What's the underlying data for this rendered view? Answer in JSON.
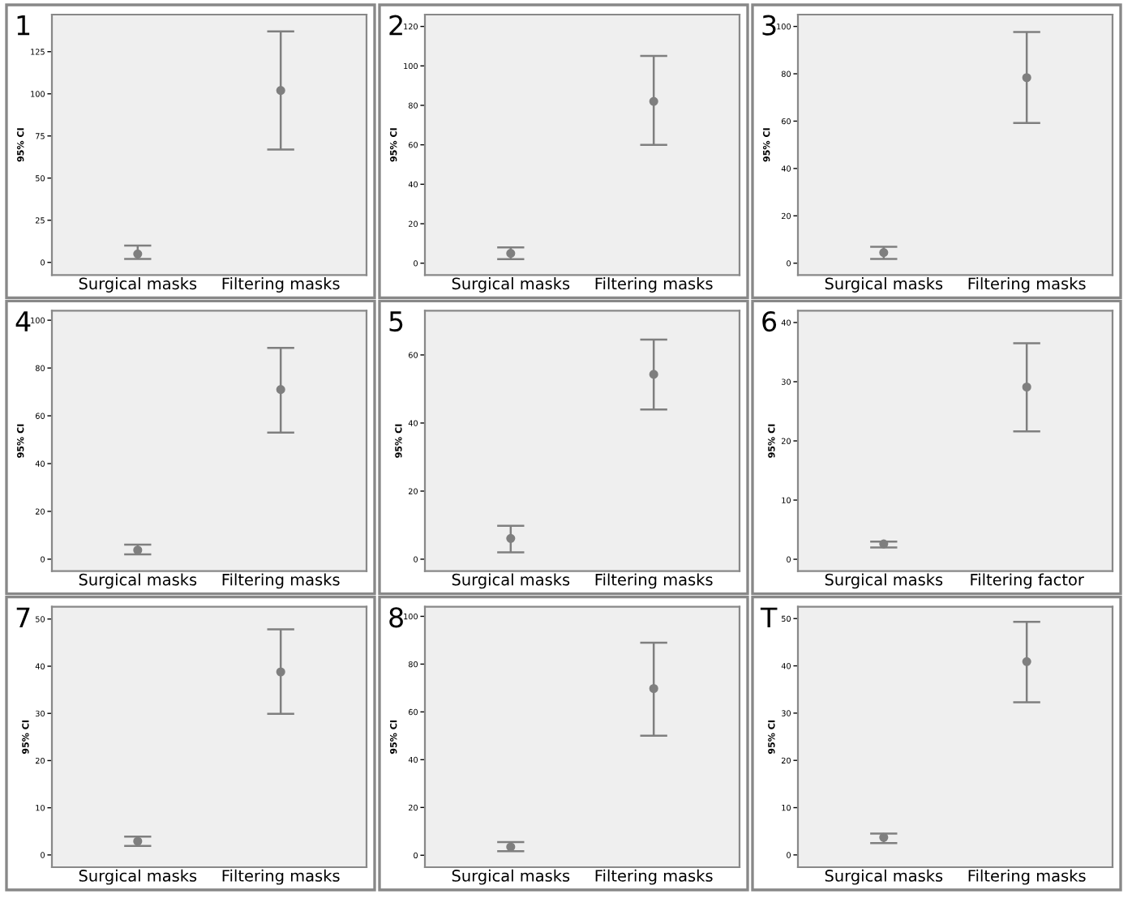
{
  "chart_data": [
    {
      "type": "scatter",
      "title": "1",
      "ylabel": "95% CI",
      "categories": [
        "Surgical masks",
        "Filtering masks"
      ],
      "values": [
        5,
        102
      ],
      "errors": [
        [
          2,
          10
        ],
        [
          67,
          137
        ]
      ],
      "color": "#7f7f7f",
      "marker": "circle",
      "ylim": [
        -7.5,
        147
      ],
      "yticks": [
        0,
        25,
        50,
        75,
        100,
        125
      ],
      "grid": false
    },
    {
      "type": "scatter",
      "title": "2",
      "ylabel": "95% CI",
      "categories": [
        "Surgical masks",
        "Filtering masks"
      ],
      "values": [
        5,
        82
      ],
      "errors": [
        [
          2,
          8
        ],
        [
          60,
          105
        ]
      ],
      "color": "#7f7f7f",
      "marker": "circle",
      "ylim": [
        -6,
        126
      ],
      "yticks": [
        0,
        20,
        40,
        60,
        80,
        100,
        120
      ],
      "grid": false
    },
    {
      "type": "scatter",
      "title": "3",
      "ylabel": "95% CI",
      "categories": [
        "Surgical masks",
        "Filtering masks"
      ],
      "values": [
        4.5,
        78.4
      ],
      "errors": [
        [
          1.8,
          6.9
        ],
        [
          59.2,
          97.6
        ]
      ],
      "color": "#7f7f7f",
      "marker": "circle",
      "ylim": [
        -5,
        105
      ],
      "yticks": [
        0,
        20,
        40,
        60,
        80,
        100
      ],
      "grid": false
    },
    {
      "type": "scatter",
      "title": "4",
      "ylabel": "95% CI",
      "categories": [
        "Surgical masks",
        "Filtering masks"
      ],
      "values": [
        3.8,
        71
      ],
      "errors": [
        [
          2,
          6.1
        ],
        [
          53,
          88.4
        ]
      ],
      "color": "#7f7f7f",
      "marker": "circle",
      "ylim": [
        -5,
        104
      ],
      "yticks": [
        0,
        20,
        40,
        60,
        80,
        100
      ],
      "grid": false
    },
    {
      "type": "scatter",
      "title": "5",
      "ylabel": "95% CI",
      "categories": [
        "Surgical masks",
        "Filtering masks"
      ],
      "values": [
        6.1,
        54.3
      ],
      "errors": [
        [
          2,
          9.8
        ],
        [
          44,
          64.5
        ]
      ],
      "color": "#7f7f7f",
      "marker": "circle",
      "ylim": [
        -3.5,
        73
      ],
      "yticks": [
        0,
        20,
        40,
        60
      ],
      "grid": false
    },
    {
      "type": "scatter",
      "title": "6",
      "ylabel": "95% CI",
      "categories": [
        "Surgical masks",
        "Filtering factor"
      ],
      "values": [
        2.6,
        29.1
      ],
      "errors": [
        [
          2,
          3
        ],
        [
          21.6,
          36.5
        ]
      ],
      "color": "#7f7f7f",
      "marker": "circle",
      "ylim": [
        -2,
        42
      ],
      "yticks": [
        0,
        10,
        20,
        30,
        40
      ],
      "grid": false
    },
    {
      "type": "scatter",
      "title": "7",
      "ylabel": "95% CI",
      "categories": [
        "Surgical masks",
        "Filtering masks"
      ],
      "values": [
        2.9,
        38.8
      ],
      "errors": [
        [
          1.9,
          3.9
        ],
        [
          29.9,
          47.8
        ]
      ],
      "color": "#7f7f7f",
      "marker": "circle",
      "ylim": [
        -2.6,
        52.6
      ],
      "yticks": [
        0,
        10,
        20,
        30,
        40,
        50
      ],
      "grid": false
    },
    {
      "type": "scatter",
      "title": "8",
      "ylabel": "95% CI",
      "categories": [
        "Surgical masks",
        "Filtering masks"
      ],
      "values": [
        3.5,
        69.8
      ],
      "errors": [
        [
          1.7,
          5.5
        ],
        [
          50,
          89
        ]
      ],
      "color": "#7f7f7f",
      "marker": "circle",
      "ylim": [
        -5,
        104
      ],
      "yticks": [
        0,
        20,
        40,
        60,
        80,
        100
      ],
      "grid": false
    },
    {
      "type": "scatter",
      "title": "T",
      "ylabel": "95% CI",
      "categories": [
        "Surgical masks",
        "Filtering masks"
      ],
      "values": [
        3.7,
        40.9
      ],
      "errors": [
        [
          2.5,
          4.5
        ],
        [
          32.3,
          49.3
        ]
      ],
      "color": "#7f7f7f",
      "marker": "circle",
      "ylim": [
        -2.6,
        52.5
      ],
      "yticks": [
        0,
        10,
        20,
        30,
        40,
        50
      ],
      "grid": false
    }
  ]
}
